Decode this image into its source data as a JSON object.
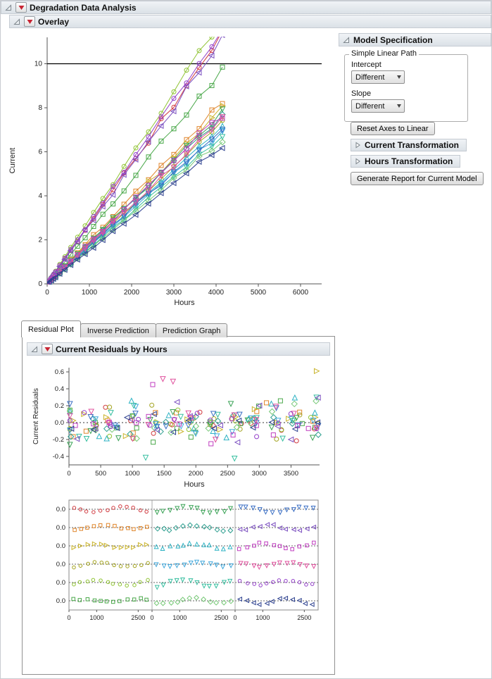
{
  "outline": {
    "main_title": "Degradation Data Analysis",
    "overlay_title": "Overlay",
    "residuals_title": "Current Residuals by Hours"
  },
  "model_spec": {
    "title": "Model Specification",
    "group_title": "Simple Linear Path",
    "intercept_label": "Intercept",
    "intercept_value": "Different",
    "slope_label": "Slope",
    "slope_value": "Different",
    "reset_button": "Reset Axes to Linear",
    "current_transform": "Current Transformation",
    "hours_transform": "Hours Transformation",
    "generate_button": "Generate Report for Current Model"
  },
  "tabs": [
    {
      "label": "Residual Plot",
      "active": true
    },
    {
      "label": "Inverse Prediction",
      "active": false
    },
    {
      "label": "Prediction Graph",
      "active": false
    }
  ],
  "icons": {
    "red_triangle_menu": "red down triangle in beveled box",
    "disclosure_open": "hollow diagonal triangle",
    "disclosure_collapsed": "hollow right-pointing triangle",
    "dropdown_arrow": "down triangle"
  },
  "colors": {
    "header_bar": "#e4e9ee",
    "red_triangle": "#c82433",
    "reference_line": "#000000"
  },
  "chart_data": [
    {
      "id": "overlay",
      "type": "line",
      "title": "",
      "xlabel": "Hours",
      "ylabel": "Current",
      "xlim": [
        0,
        6500
      ],
      "ylim": [
        0,
        11.2
      ],
      "xticks": [
        0,
        1000,
        2000,
        3000,
        4000,
        5000,
        6000
      ],
      "yticks": [
        0,
        2,
        4,
        6,
        8,
        10
      ],
      "ref_line_y": 10,
      "grid": false,
      "legend": "none",
      "x": [
        0,
        50,
        100,
        150,
        200,
        300,
        420,
        560,
        720,
        900,
        1100,
        1320,
        1560,
        1820,
        2100,
        2400,
        2700,
        3000,
        3300,
        3600,
        3900,
        4150
      ],
      "noise": 0.03,
      "seed": 11,
      "series": [
        {
          "color": "#d13b40",
          "marker": "circle",
          "slope": 0.00272
        },
        {
          "color": "#e0862c",
          "marker": "square",
          "slope": 0.00198
        },
        {
          "color": "#c9b32a",
          "marker": "triangle-right",
          "slope": 0.0019
        },
        {
          "color": "#a3a31f",
          "marker": "circle",
          "slope": 0.00176
        },
        {
          "color": "#8fc332",
          "marker": "circle",
          "slope": 0.00292
        },
        {
          "color": "#4aa84a",
          "marker": "square",
          "slope": 0.00236
        },
        {
          "color": "#3ba357",
          "marker": "triangle-down",
          "slope": 0.00188
        },
        {
          "color": "#2d9e8f",
          "marker": "diamond",
          "slope": 0.00183
        },
        {
          "color": "#2fb3c4",
          "marker": "triangle-up",
          "slope": 0.00173
        },
        {
          "color": "#41a8dc",
          "marker": "triangle-down",
          "slope": 0.00168
        },
        {
          "color": "#37bfa0",
          "marker": "triangle-down",
          "slope": 0.00162
        },
        {
          "color": "#77c877",
          "marker": "diamond",
          "slope": 0.00158
        },
        {
          "color": "#3b6fc4",
          "marker": "triangle-down",
          "slope": 0.0017
        },
        {
          "color": "#7b4fc0",
          "marker": "triangle-left",
          "slope": 0.00266
        },
        {
          "color": "#c03ec0",
          "marker": "square",
          "slope": 0.00186
        },
        {
          "color": "#e0529e",
          "marker": "triangle-down",
          "slope": 0.00179
        },
        {
          "color": "#9340c9",
          "marker": "circle",
          "slope": 0.00281
        },
        {
          "color": "#2b3f8e",
          "marker": "triangle-left",
          "slope": 0.00152
        }
      ]
    },
    {
      "id": "residual_scatter",
      "type": "scatter",
      "title": "",
      "xlabel": "Hours",
      "ylabel": "Current Residuals",
      "xlim": [
        0,
        3950
      ],
      "ylim": [
        -0.5,
        0.65
      ],
      "xticks": [
        0,
        500,
        1000,
        1500,
        2000,
        2500,
        3000,
        3500
      ],
      "yticks": [
        -0.4,
        -0.2,
        0.0,
        0.2,
        0.4,
        0.6
      ],
      "zero_line": true,
      "points_per_unit": 13,
      "seed": 23,
      "amp_min": 0.12,
      "amp_range": 0.1,
      "outliers": [
        {
          "unit": 2,
          "x": 3900,
          "y": 0.61
        },
        {
          "unit": 15,
          "x": 1480,
          "y": 0.52
        },
        {
          "unit": 15,
          "x": 1640,
          "y": 0.49
        },
        {
          "unit": 14,
          "x": 1320,
          "y": 0.45
        }
      ]
    },
    {
      "id": "cell_plot",
      "type": "cell-residuals",
      "rows": 6,
      "cols": 3,
      "x_domain": [
        0,
        3000
      ],
      "xticks": [
        0,
        1000,
        2500
      ],
      "row_axis_label": "0.0",
      "points_per_cell": 12,
      "seed": 41,
      "unit_order": "column-major, same units/colors/markers as overlay series"
    }
  ]
}
